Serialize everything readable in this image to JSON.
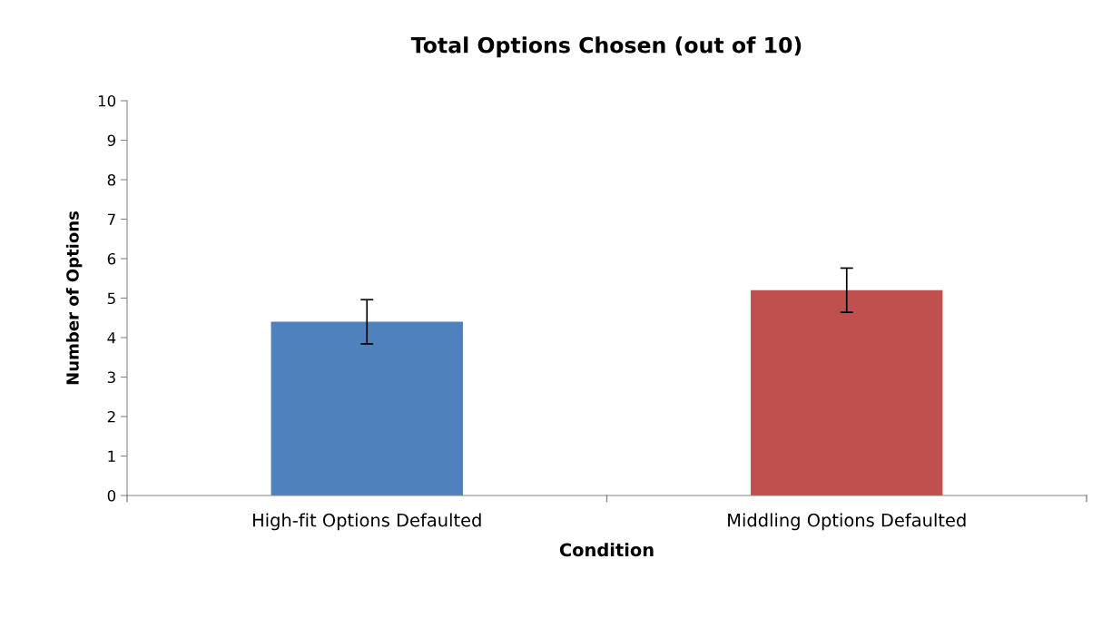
{
  "chart_data": {
    "type": "bar",
    "title": "Total Options Chosen (out of 10)",
    "xlabel": "Condition",
    "ylabel": "Number of Options",
    "categories": [
      "High-fit Options Defaulted",
      "Middling Options Defaulted"
    ],
    "values": [
      4.4,
      5.2
    ],
    "colors": [
      "#4f81bd",
      "#c0504d"
    ],
    "errors": [
      0.56,
      0.56
    ],
    "ylim": [
      0,
      10
    ],
    "yticks": [
      0,
      1,
      2,
      3,
      4,
      5,
      6,
      7,
      8,
      9,
      10
    ],
    "grid": false,
    "legend": false
  }
}
